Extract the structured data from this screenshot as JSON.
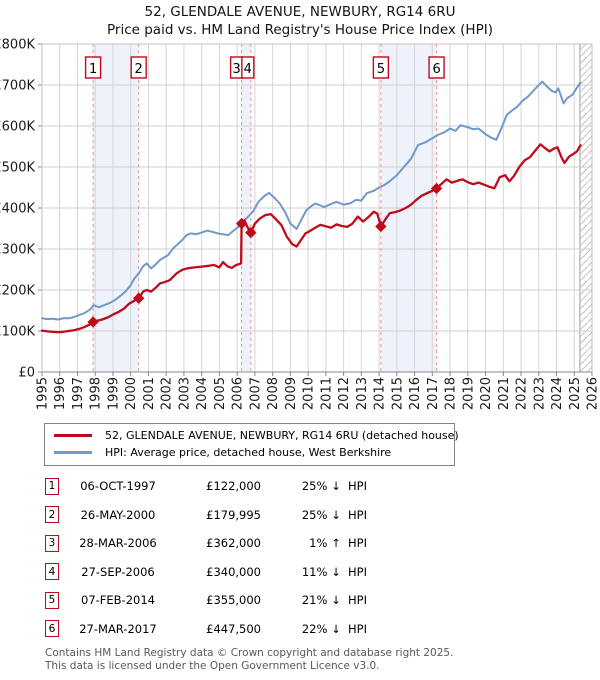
{
  "title": {
    "line1": "52, GLENDALE AVENUE, NEWBURY, RG14 6RU",
    "line2": "Price paid vs. HM Land Registry's House Price Index (HPI)"
  },
  "colors": {
    "property": "#c00b1c",
    "hpi": "#7098c8",
    "band": "#edf2fb",
    "dashed": "#f29090",
    "grid": "#d6d6d6",
    "grid_h": "#cfcfcf",
    "border": "#c2c2c2",
    "axis": "#8a8a8a",
    "hatch": "#c4c4c4",
    "marker_box_border": "#c00b1c",
    "text": "#1a1a1a"
  },
  "chart_data": {
    "type": "line",
    "title": "52, GLENDALE AVENUE, NEWBURY, RG14 6RU — Price paid vs. HPI",
    "xlabel": "",
    "ylabel": "",
    "x_axis": {
      "range": [
        1995,
        2026
      ],
      "ticks": [
        1995,
        1996,
        1997,
        1998,
        1999,
        2000,
        2001,
        2002,
        2003,
        2004,
        2005,
        2006,
        2007,
        2008,
        2009,
        2010,
        2011,
        2012,
        2013,
        2014,
        2015,
        2016,
        2017,
        2018,
        2019,
        2020,
        2021,
        2022,
        2023,
        2024,
        2025,
        2026
      ]
    },
    "y_axis": {
      "range": [
        0,
        800
      ],
      "unit": "GBP thousands",
      "tick_values": [
        0,
        100,
        200,
        300,
        400,
        500,
        600,
        700,
        800
      ],
      "tick_labels": [
        "£0",
        "£100K",
        "£200K",
        "£300K",
        "£400K",
        "£500K",
        "£600K",
        "£700K",
        "£800K"
      ]
    },
    "grid": true,
    "legend_position": "bottom",
    "series": [
      {
        "name": "52, GLENDALE AVENUE, NEWBURY, RG14 6RU (detached house)",
        "color_key": "property",
        "points": [
          [
            1995.0,
            101
          ],
          [
            1995.3,
            99
          ],
          [
            1995.6,
            98
          ],
          [
            1995.9,
            97
          ],
          [
            1996.2,
            98
          ],
          [
            1996.5,
            100
          ],
          [
            1996.8,
            102
          ],
          [
            1997.1,
            105
          ],
          [
            1997.4,
            110
          ],
          [
            1997.7,
            116
          ],
          [
            1997.88,
            122
          ],
          [
            1998.1,
            125
          ],
          [
            1998.4,
            128
          ],
          [
            1998.7,
            133
          ],
          [
            1999.0,
            140
          ],
          [
            1999.3,
            146
          ],
          [
            1999.6,
            154
          ],
          [
            1999.9,
            166
          ],
          [
            2000.2,
            174
          ],
          [
            2000.45,
            180
          ],
          [
            2000.7,
            196
          ],
          [
            2000.9,
            200
          ],
          [
            2001.15,
            196
          ],
          [
            2001.4,
            205
          ],
          [
            2001.65,
            216
          ],
          [
            2001.9,
            219
          ],
          [
            2002.2,
            224
          ],
          [
            2002.6,
            241
          ],
          [
            2002.9,
            249
          ],
          [
            2003.2,
            253
          ],
          [
            2003.6,
            255
          ],
          [
            2004.0,
            257
          ],
          [
            2004.4,
            259
          ],
          [
            2004.7,
            261
          ],
          [
            2005.0,
            255
          ],
          [
            2005.2,
            268
          ],
          [
            2005.45,
            258
          ],
          [
            2005.7,
            254
          ],
          [
            2005.9,
            260
          ],
          [
            2006.1,
            263
          ],
          [
            2006.22,
            265
          ],
          [
            2006.25,
            362
          ],
          [
            2006.4,
            370
          ],
          [
            2006.6,
            352
          ],
          [
            2006.77,
            340
          ],
          [
            2007.0,
            362
          ],
          [
            2007.3,
            375
          ],
          [
            2007.6,
            383
          ],
          [
            2007.9,
            385
          ],
          [
            2008.2,
            372
          ],
          [
            2008.5,
            358
          ],
          [
            2008.8,
            330
          ],
          [
            2009.1,
            312
          ],
          [
            2009.35,
            306
          ],
          [
            2009.6,
            322
          ],
          [
            2009.85,
            338
          ],
          [
            2010.1,
            344
          ],
          [
            2010.4,
            352
          ],
          [
            2010.7,
            359
          ],
          [
            2011.0,
            355
          ],
          [
            2011.3,
            352
          ],
          [
            2011.6,
            360
          ],
          [
            2011.9,
            356
          ],
          [
            2012.2,
            354
          ],
          [
            2012.5,
            362
          ],
          [
            2012.8,
            379
          ],
          [
            2013.1,
            367
          ],
          [
            2013.4,
            378
          ],
          [
            2013.7,
            391
          ],
          [
            2013.9,
            386
          ],
          [
            2014.1,
            355
          ],
          [
            2014.35,
            372
          ],
          [
            2014.6,
            387
          ],
          [
            2014.9,
            390
          ],
          [
            2015.2,
            394
          ],
          [
            2015.5,
            400
          ],
          [
            2015.8,
            408
          ],
          [
            2016.1,
            420
          ],
          [
            2016.4,
            430
          ],
          [
            2016.7,
            436
          ],
          [
            2017.0,
            442
          ],
          [
            2017.24,
            448
          ],
          [
            2017.5,
            458
          ],
          [
            2017.8,
            470
          ],
          [
            2018.1,
            462
          ],
          [
            2018.4,
            466
          ],
          [
            2018.7,
            470
          ],
          [
            2019.0,
            463
          ],
          [
            2019.3,
            458
          ],
          [
            2019.6,
            462
          ],
          [
            2019.9,
            457
          ],
          [
            2020.2,
            452
          ],
          [
            2020.5,
            448
          ],
          [
            2020.8,
            475
          ],
          [
            2021.1,
            480
          ],
          [
            2021.35,
            465
          ],
          [
            2021.6,
            478
          ],
          [
            2021.9,
            500
          ],
          [
            2022.2,
            516
          ],
          [
            2022.5,
            524
          ],
          [
            2022.8,
            540
          ],
          [
            2023.1,
            555
          ],
          [
            2023.35,
            546
          ],
          [
            2023.6,
            538
          ],
          [
            2023.85,
            545
          ],
          [
            2024.05,
            548
          ],
          [
            2024.3,
            522
          ],
          [
            2024.45,
            510
          ],
          [
            2024.7,
            525
          ],
          [
            2024.95,
            532
          ],
          [
            2025.15,
            538
          ],
          [
            2025.35,
            553
          ]
        ]
      },
      {
        "name": "HPI: Average price, detached house, West Berkshire",
        "color_key": "hpi",
        "points": [
          [
            1995.0,
            131
          ],
          [
            1995.3,
            129
          ],
          [
            1995.6,
            130
          ],
          [
            1995.9,
            128
          ],
          [
            1996.2,
            131
          ],
          [
            1996.5,
            131
          ],
          [
            1996.8,
            134
          ],
          [
            1997.1,
            139
          ],
          [
            1997.4,
            144
          ],
          [
            1997.7,
            152
          ],
          [
            1997.9,
            163
          ],
          [
            1998.2,
            158
          ],
          [
            1998.5,
            163
          ],
          [
            1998.8,
            168
          ],
          [
            1999.1,
            175
          ],
          [
            1999.4,
            185
          ],
          [
            1999.7,
            196
          ],
          [
            2000.0,
            212
          ],
          [
            2000.2,
            228
          ],
          [
            2000.45,
            240
          ],
          [
            2000.7,
            258
          ],
          [
            2000.9,
            265
          ],
          [
            2001.15,
            253
          ],
          [
            2001.4,
            262
          ],
          [
            2001.65,
            273
          ],
          [
            2001.9,
            280
          ],
          [
            2002.1,
            285
          ],
          [
            2002.4,
            302
          ],
          [
            2002.9,
            322
          ],
          [
            2003.15,
            334
          ],
          [
            2003.4,
            338
          ],
          [
            2003.7,
            336
          ],
          [
            2004.0,
            340
          ],
          [
            2004.3,
            345
          ],
          [
            2004.6,
            342
          ],
          [
            2004.9,
            338
          ],
          [
            2005.2,
            336
          ],
          [
            2005.5,
            334
          ],
          [
            2005.8,
            345
          ],
          [
            2006.1,
            355
          ],
          [
            2006.3,
            365
          ],
          [
            2006.6,
            378
          ],
          [
            2006.9,
            392
          ],
          [
            2007.2,
            415
          ],
          [
            2007.5,
            428
          ],
          [
            2007.8,
            437
          ],
          [
            2008.1,
            425
          ],
          [
            2008.4,
            411
          ],
          [
            2008.7,
            390
          ],
          [
            2009.0,
            362
          ],
          [
            2009.35,
            349
          ],
          [
            2009.6,
            370
          ],
          [
            2009.9,
            395
          ],
          [
            2010.2,
            405
          ],
          [
            2010.4,
            411
          ],
          [
            2010.7,
            406
          ],
          [
            2010.9,
            402
          ],
          [
            2011.2,
            408
          ],
          [
            2011.6,
            415
          ],
          [
            2012.0,
            408
          ],
          [
            2012.4,
            412
          ],
          [
            2012.7,
            420
          ],
          [
            2013.0,
            418
          ],
          [
            2013.3,
            436
          ],
          [
            2013.7,
            442
          ],
          [
            2014.0,
            450
          ],
          [
            2014.3,
            456
          ],
          [
            2014.6,
            465
          ],
          [
            2015.0,
            480
          ],
          [
            2015.4,
            500
          ],
          [
            2015.8,
            520
          ],
          [
            2016.2,
            554
          ],
          [
            2016.6,
            560
          ],
          [
            2017.0,
            570
          ],
          [
            2017.3,
            578
          ],
          [
            2017.7,
            585
          ],
          [
            2018.0,
            594
          ],
          [
            2018.3,
            588
          ],
          [
            2018.6,
            602
          ],
          [
            2019.0,
            597
          ],
          [
            2019.3,
            592
          ],
          [
            2019.6,
            594
          ],
          [
            2020.0,
            580
          ],
          [
            2020.3,
            572
          ],
          [
            2020.6,
            566
          ],
          [
            2020.9,
            595
          ],
          [
            2021.2,
            627
          ],
          [
            2021.5,
            638
          ],
          [
            2021.8,
            648
          ],
          [
            2022.1,
            662
          ],
          [
            2022.4,
            672
          ],
          [
            2022.7,
            686
          ],
          [
            2023.0,
            700
          ],
          [
            2023.2,
            708
          ],
          [
            2023.5,
            695
          ],
          [
            2023.75,
            685
          ],
          [
            2023.95,
            682
          ],
          [
            2024.1,
            692
          ],
          [
            2024.4,
            655
          ],
          [
            2024.6,
            668
          ],
          [
            2024.9,
            676
          ],
          [
            2025.1,
            690
          ],
          [
            2025.35,
            706
          ]
        ]
      }
    ],
    "sales": [
      {
        "n": "1",
        "year": 1997.88,
        "price_k": 122,
        "box_dx": 0
      },
      {
        "n": "2",
        "year": 2000.45,
        "price_k": 180,
        "box_dx": 0
      },
      {
        "n": "3",
        "year": 2006.25,
        "price_k": 362,
        "box_dx": -5
      },
      {
        "n": "4",
        "year": 2006.77,
        "price_k": 340,
        "box_dx": -3
      },
      {
        "n": "5",
        "year": 2014.1,
        "price_k": 355,
        "box_dx": 0
      },
      {
        "n": "6",
        "year": 2017.24,
        "price_k": 447.5,
        "box_dx": 0
      }
    ],
    "ownership_bands": [
      {
        "from": 1997.88,
        "to": 2000.45
      },
      {
        "from": 2006.25,
        "to": 2006.77
      },
      {
        "from": 2014.1,
        "to": 2017.24
      }
    ],
    "future_hatch": {
      "from": 2025.32,
      "to": 2026
    }
  },
  "legend": {
    "items": [
      {
        "label": "52, GLENDALE AVENUE, NEWBURY, RG14 6RU (detached house)",
        "color_key": "property"
      },
      {
        "label": "HPI: Average price, detached house, West Berkshire",
        "color_key": "hpi"
      }
    ]
  },
  "transactions": {
    "rows": [
      {
        "n": "1",
        "date": "06-OCT-1997",
        "price": "£122,000",
        "pct": "25%",
        "dir": "↓",
        "ref": "HPI"
      },
      {
        "n": "2",
        "date": "26-MAY-2000",
        "price": "£179,995",
        "pct": "25%",
        "dir": "↓",
        "ref": "HPI"
      },
      {
        "n": "3",
        "date": "28-MAR-2006",
        "price": "£362,000",
        "pct": "1%",
        "dir": "↑",
        "ref": "HPI"
      },
      {
        "n": "4",
        "date": "27-SEP-2006",
        "price": "£340,000",
        "pct": "11%",
        "dir": "↓",
        "ref": "HPI"
      },
      {
        "n": "5",
        "date": "07-FEB-2014",
        "price": "£355,000",
        "pct": "21%",
        "dir": "↓",
        "ref": "HPI"
      },
      {
        "n": "6",
        "date": "27-MAR-2017",
        "price": "£447,500",
        "pct": "22%",
        "dir": "↓",
        "ref": "HPI"
      }
    ]
  },
  "footer": {
    "line1": "Contains HM Land Registry data © Crown copyright and database right 2025.",
    "line2": "This data is licensed under the Open Government Licence v3.0."
  }
}
